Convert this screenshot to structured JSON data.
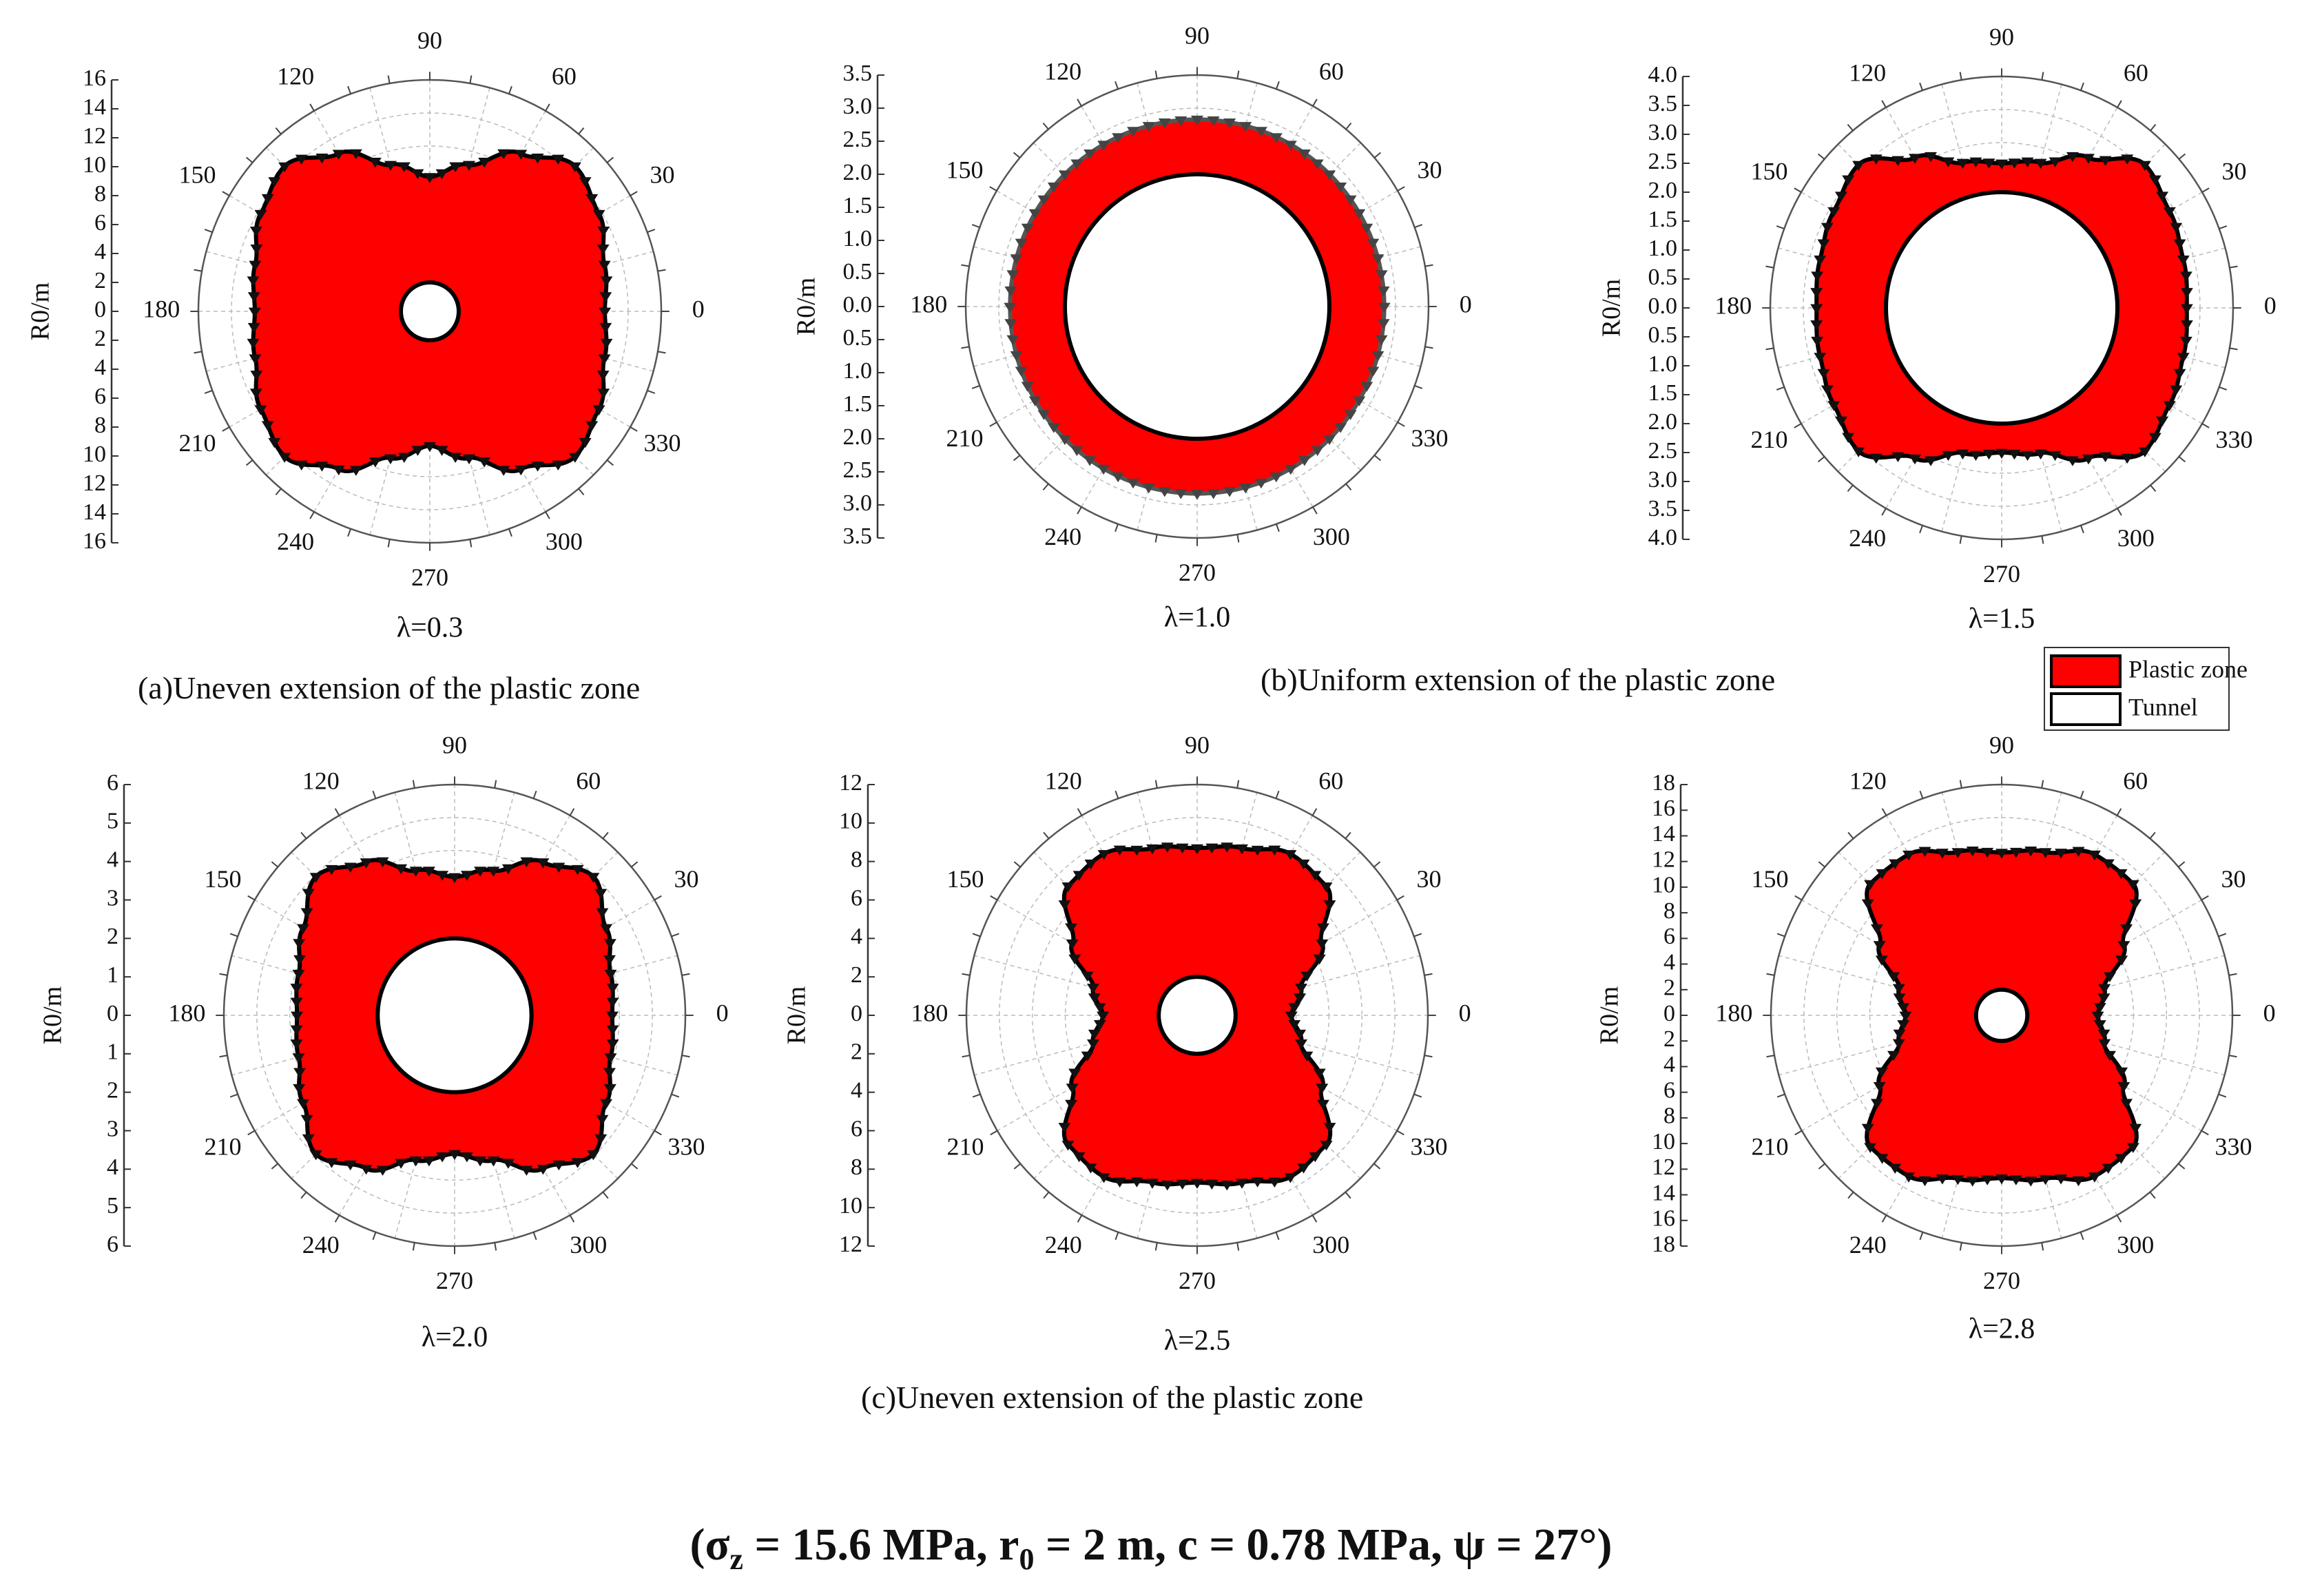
{
  "figure": {
    "captions": {
      "a": "(a)Uneven extension of the plastic zone",
      "b": "(b)Uniform extension of the plastic zone",
      "c": "(c)Uneven extension of the plastic zone"
    },
    "legend": {
      "items": [
        {
          "label": "Plastic zone",
          "color": "#ff0000"
        },
        {
          "label": "Tunnel",
          "color": "#ffffff"
        }
      ]
    },
    "footer": {
      "open": "(σ",
      "sigma_sub": "z",
      "sigma_val": " = 15.6 MPa, r",
      "r_sub": "0",
      "rest": " = 2 m, c = 0.78 MPa, ψ = 27°)"
    }
  },
  "colors": {
    "plastic_zone": "#ff0000",
    "tunnel": "#ffffff",
    "outline": "#000000",
    "outline_uniform": "#555555",
    "grid": "#bbbbbb"
  },
  "chart_data": [
    {
      "type": "polar-area",
      "panel": "a",
      "label": "λ=0.3",
      "radial_label": "R0/m",
      "radial_ticks": [
        16,
        14,
        12,
        10,
        8,
        6,
        4,
        2,
        0,
        2,
        4,
        6,
        8,
        10,
        12,
        14,
        16
      ],
      "angular_ticks": [
        0,
        30,
        60,
        90,
        120,
        150,
        180,
        210,
        240,
        270,
        300,
        330
      ],
      "rmax": 16,
      "tunnel_radius": 2,
      "plastic_radius": {
        "theta": [
          0,
          15,
          30,
          45,
          60,
          75,
          90
        ],
        "r": [
          12.1,
          12.5,
          13.5,
          14.2,
          12.6,
          10.5,
          9.3
        ]
      }
    },
    {
      "type": "polar-area",
      "panel": "b",
      "label": "λ=1.0",
      "radial_label": "R0/m",
      "radial_ticks": [
        "3.5",
        "3.0",
        "2.5",
        "2.0",
        "1.5",
        "1.0",
        "0.5",
        "0.0",
        "0.5",
        "1.0",
        "1.5",
        "2.0",
        "2.5",
        "3.0",
        "3.5"
      ],
      "angular_ticks": [
        0,
        30,
        60,
        90,
        120,
        150,
        180,
        210,
        240,
        270,
        300,
        330
      ],
      "rmax": 3.5,
      "tunnel_radius": 2,
      "plastic_radius": {
        "theta": [
          0,
          90
        ],
        "r": [
          2.83,
          2.83
        ]
      }
    },
    {
      "type": "polar-area",
      "panel": "c",
      "label": "λ=1.5",
      "radial_label": "R0/m",
      "radial_ticks": [
        "4.0",
        "3.5",
        "3.0",
        "2.5",
        "2.0",
        "1.5",
        "1.0",
        "0.5",
        "0.0",
        "0.5",
        "1.0",
        "1.5",
        "2.0",
        "2.5",
        "3.0",
        "3.5",
        "4.0"
      ],
      "angular_ticks": [
        0,
        30,
        60,
        90,
        120,
        150,
        180,
        210,
        240,
        270,
        300,
        330
      ],
      "rmax": 4,
      "tunnel_radius": 2,
      "plastic_radius": {
        "theta": [
          0,
          15,
          30,
          45,
          60,
          75,
          90
        ],
        "r": [
          3.2,
          3.25,
          3.35,
          3.5,
          3.0,
          2.6,
          2.5
        ]
      }
    },
    {
      "type": "polar-area",
      "panel": "d",
      "label": "λ=2.0",
      "radial_label": "R0/m",
      "radial_ticks": [
        6,
        5,
        4,
        3,
        2,
        1,
        0,
        1,
        2,
        3,
        4,
        5,
        6
      ],
      "angular_ticks": [
        0,
        30,
        60,
        90,
        120,
        150,
        180,
        210,
        240,
        270,
        300,
        330
      ],
      "rmax": 6,
      "tunnel_radius": 2,
      "plastic_radius": {
        "theta": [
          0,
          15,
          30,
          45,
          60,
          75,
          90
        ],
        "r": [
          4.1,
          4.2,
          4.55,
          5.1,
          4.6,
          3.9,
          3.6
        ]
      }
    },
    {
      "type": "polar-area",
      "panel": "e",
      "label": "λ=2.5",
      "radial_label": "R0/m",
      "radial_ticks": [
        12,
        10,
        8,
        6,
        4,
        2,
        0,
        2,
        4,
        6,
        8,
        10,
        12
      ],
      "angular_ticks": [
        0,
        30,
        60,
        90,
        120,
        150,
        180,
        210,
        240,
        270,
        300,
        330
      ],
      "rmax": 12,
      "tunnel_radius": 2,
      "plastic_radius": {
        "theta": [
          0,
          15,
          30,
          45,
          60,
          75,
          90
        ],
        "r": [
          4.9,
          5.6,
          7.5,
          9.5,
          9.7,
          9.0,
          8.7
        ]
      }
    },
    {
      "type": "polar-area",
      "panel": "f",
      "label": "λ=2.8",
      "radial_label": "R0/m",
      "radial_ticks": [
        18,
        16,
        14,
        12,
        10,
        8,
        6,
        4,
        2,
        0,
        2,
        4,
        6,
        8,
        10,
        12,
        14,
        16,
        18
      ],
      "angular_ticks": [
        0,
        30,
        60,
        90,
        120,
        150,
        180,
        210,
        240,
        270,
        300,
        330
      ],
      "rmax": 18,
      "tunnel_radius": 2,
      "plastic_radius": {
        "theta": [
          0,
          15,
          30,
          45,
          60,
          75,
          90
        ],
        "r": [
          7.5,
          8.3,
          11.0,
          14.5,
          14.5,
          13.2,
          12.7
        ]
      }
    }
  ]
}
